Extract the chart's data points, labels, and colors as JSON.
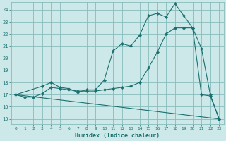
{
  "xlabel": "Humidex (Indice chaleur)",
  "bg_color": "#cce8e8",
  "grid_color": "#88bbbb",
  "line_color": "#1a7070",
  "xlim": [
    -0.5,
    23.5
  ],
  "ylim": [
    14.6,
    24.6
  ],
  "xticks": [
    0,
    1,
    2,
    3,
    4,
    5,
    6,
    7,
    8,
    9,
    10,
    11,
    12,
    13,
    14,
    15,
    16,
    17,
    18,
    19,
    20,
    21,
    22,
    23
  ],
  "yticks": [
    15,
    16,
    17,
    18,
    19,
    20,
    21,
    22,
    23,
    24
  ],
  "line1_x": [
    0,
    1,
    2,
    3,
    4,
    5,
    6,
    7,
    8,
    9,
    10,
    11,
    12,
    13,
    14,
    15,
    16,
    17,
    18,
    19,
    20,
    21,
    22,
    23
  ],
  "line1_y": [
    17.0,
    16.8,
    16.8,
    17.1,
    17.6,
    17.5,
    17.4,
    17.3,
    17.3,
    17.3,
    17.4,
    17.5,
    17.6,
    17.7,
    18.0,
    19.2,
    20.5,
    22.0,
    22.5,
    22.5,
    22.5,
    20.8,
    17.0,
    15.0
  ],
  "line2_x": [
    0,
    3,
    4,
    5,
    6,
    7,
    8,
    9,
    10,
    11,
    12,
    13,
    14,
    15,
    16,
    17,
    18,
    19,
    20,
    21,
    22,
    23
  ],
  "line2_y": [
    17.0,
    17.7,
    18.0,
    17.6,
    17.5,
    17.2,
    17.4,
    17.4,
    18.2,
    20.6,
    21.2,
    21.0,
    21.9,
    23.5,
    23.7,
    23.4,
    24.5,
    23.5,
    22.5,
    17.0,
    16.9,
    15.0
  ],
  "line3_x": [
    0,
    23
  ],
  "line3_y": [
    17.0,
    15.0
  ]
}
